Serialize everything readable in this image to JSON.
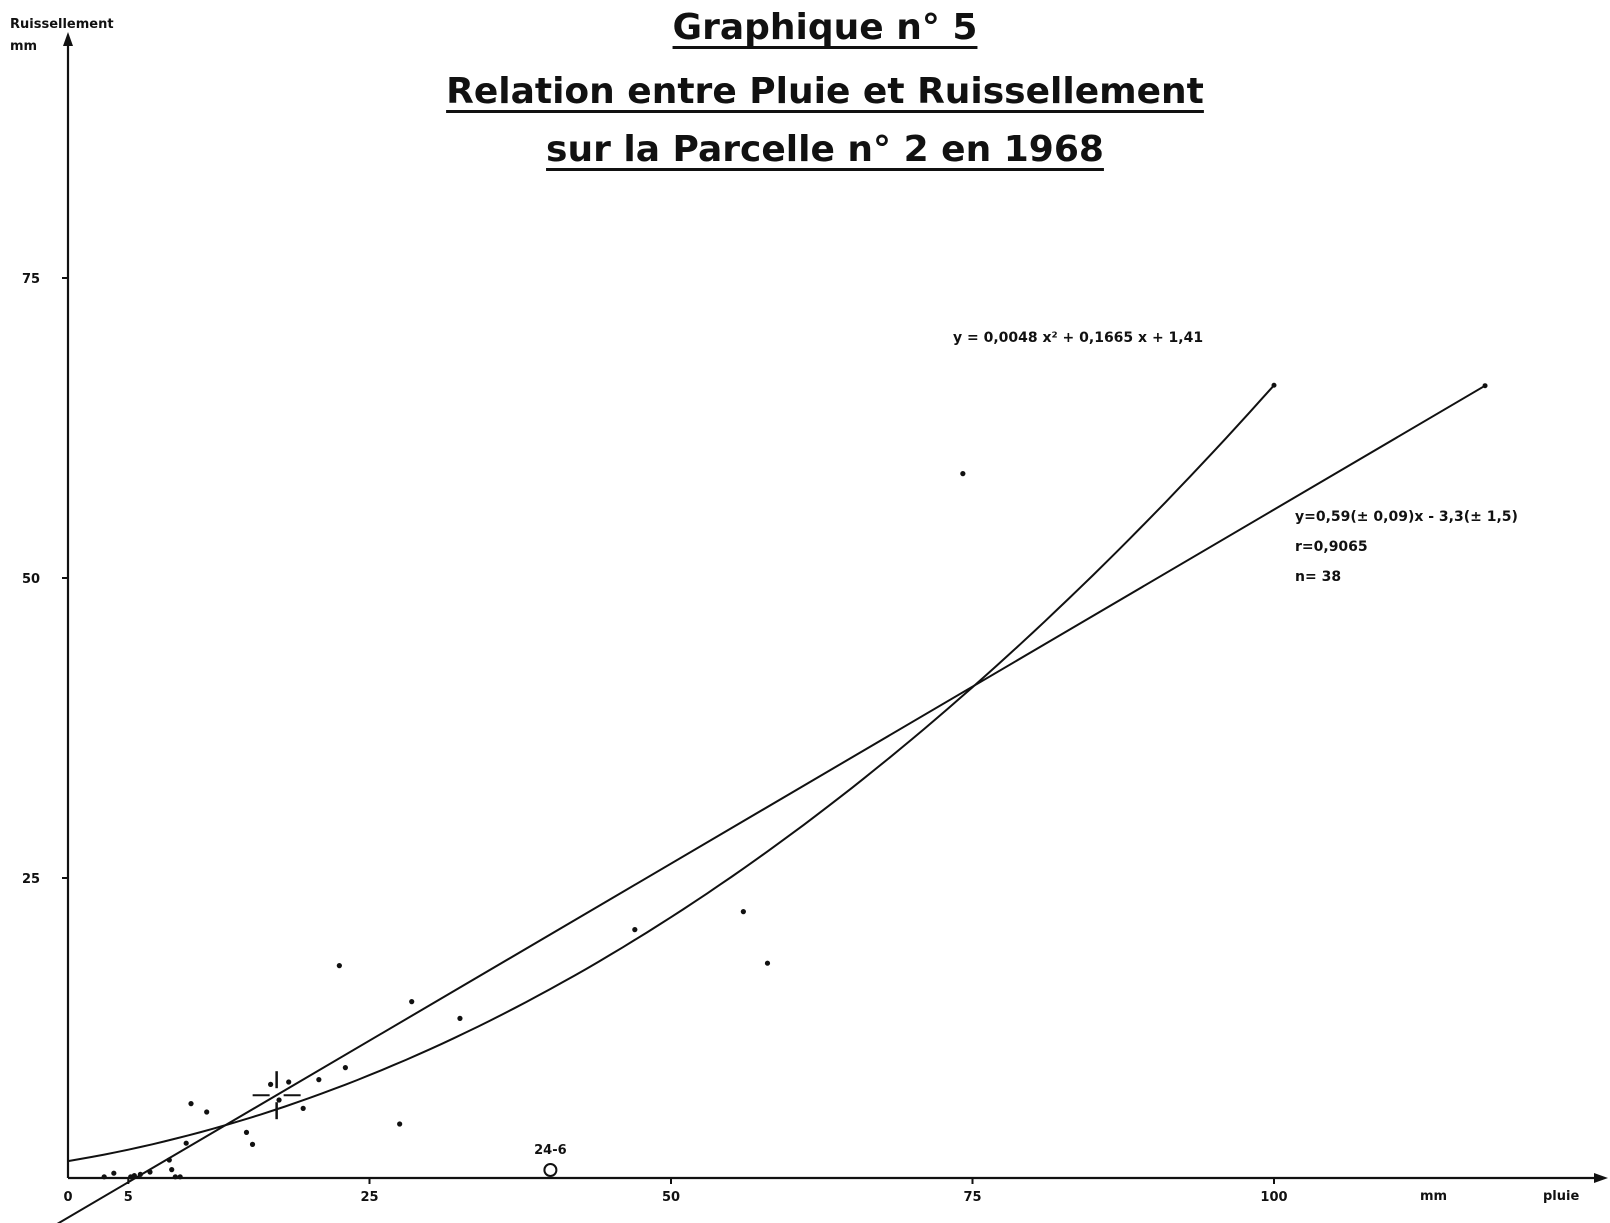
{
  "title": {
    "line1": "Graphique n° 5",
    "line2": "Relation entre Pluie et Ruissellement",
    "line3": "sur la Parcelle n° 2 en 1968"
  },
  "chart_data": {
    "type": "scatter",
    "xlabel_unit": "mm",
    "xlabel": "pluie",
    "ylabel": "Ruissellement",
    "ylabel_unit": "mm",
    "xlim": [
      0,
      127
    ],
    "ylim": [
      0,
      95
    ],
    "x_ticks": [
      0,
      5,
      25,
      50,
      75,
      100
    ],
    "x_tick_labels": [
      "0",
      "5",
      "25",
      "50",
      "75",
      "100"
    ],
    "y_ticks": [
      25,
      50,
      75
    ],
    "y_tick_labels": [
      "25",
      "50",
      "75"
    ],
    "grid": false,
    "points": [
      {
        "x": 3,
        "y": 0.1
      },
      {
        "x": 3.8,
        "y": 0.4
      },
      {
        "x": 5.2,
        "y": 0.1
      },
      {
        "x": 5.5,
        "y": 0.2
      },
      {
        "x": 6,
        "y": 0.3
      },
      {
        "x": 6.8,
        "y": 0.5
      },
      {
        "x": 8.4,
        "y": 1.5
      },
      {
        "x": 8.6,
        "y": 0.7
      },
      {
        "x": 8.9,
        "y": 0.1
      },
      {
        "x": 9.3,
        "y": 0.1
      },
      {
        "x": 9.8,
        "y": 2.9
      },
      {
        "x": 10.2,
        "y": 6.2
      },
      {
        "x": 11.5,
        "y": 5.5
      },
      {
        "x": 14.8,
        "y": 3.8
      },
      {
        "x": 15.3,
        "y": 2.8
      },
      {
        "x": 16.8,
        "y": 7.8
      },
      {
        "x": 17.5,
        "y": 6.5
      },
      {
        "x": 18.3,
        "y": 8
      },
      {
        "x": 19.5,
        "y": 5.8
      },
      {
        "x": 20.8,
        "y": 8.2
      },
      {
        "x": 22.5,
        "y": 17.7
      },
      {
        "x": 23,
        "y": 9.2
      },
      {
        "x": 27.5,
        "y": 4.5
      },
      {
        "x": 28.5,
        "y": 14.7
      },
      {
        "x": 32.5,
        "y": 13.3
      },
      {
        "x": 47,
        "y": 20.7
      },
      {
        "x": 56,
        "y": 22.2
      },
      {
        "x": 58,
        "y": 17.9
      },
      {
        "x": 74.2,
        "y": 58.7
      }
    ],
    "highlight_point": {
      "x": 40,
      "y": 0,
      "label": "24-6"
    },
    "centroid_marker": {
      "x": 17.3,
      "y": 6.9
    },
    "series": [
      {
        "kind": "quadratic",
        "label": "y = 0,0048 x² + 0,1665 x + 1,41",
        "coefficients": {
          "a": 0.0048,
          "b": 0.1665,
          "c": 1.41
        },
        "x_range": [
          0,
          100
        ]
      },
      {
        "kind": "linear",
        "label": "y=0,59(± 0,09)x - 3,3(± 1,5)",
        "stats": [
          "r=0,9065",
          "n= 38"
        ],
        "coefficients": {
          "slope": 0.59,
          "intercept": -3.3
        },
        "x_range": [
          0,
          117.5
        ]
      }
    ]
  }
}
